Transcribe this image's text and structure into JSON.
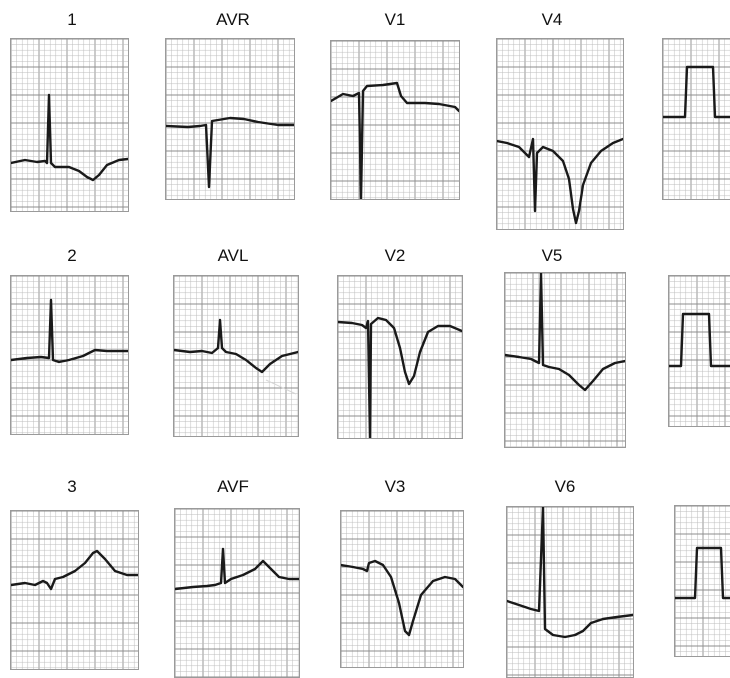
{
  "leads": [
    {
      "id": "1",
      "label": "1"
    },
    {
      "id": "avr",
      "label": "AVR"
    },
    {
      "id": "v1",
      "label": "V1"
    },
    {
      "id": "v4",
      "label": "V4"
    },
    {
      "id": "2",
      "label": "2"
    },
    {
      "id": "avl",
      "label": "AVL"
    },
    {
      "id": "v2",
      "label": "V2"
    },
    {
      "id": "v5",
      "label": "V5"
    },
    {
      "id": "3",
      "label": "3"
    },
    {
      "id": "avf",
      "label": "AVF"
    },
    {
      "id": "v3",
      "label": "V3"
    },
    {
      "id": "v6",
      "label": "V6"
    }
  ],
  "colors": {
    "grid_minor": "#bdbdbd",
    "grid_major": "#8c8c8c",
    "trace": "#1a1a1a"
  }
}
